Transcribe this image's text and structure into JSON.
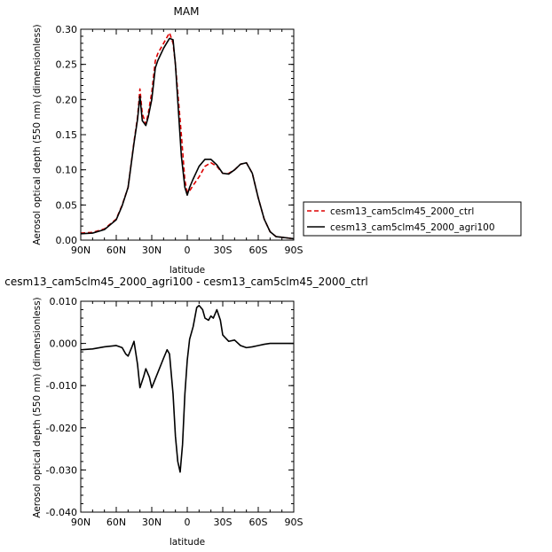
{
  "chart_data": [
    {
      "type": "line",
      "title": "MAM",
      "xlabel": "latitude",
      "ylabel": "Aerosol optical depth (550 nm) (dimensionless)",
      "x_ticks": [
        "90N",
        "60N",
        "30N",
        "0",
        "30S",
        "60S",
        "90S"
      ],
      "x_tick_values": [
        90,
        60,
        30,
        0,
        -30,
        -60,
        -90
      ],
      "xlim": [
        90,
        -90
      ],
      "ylim": [
        0,
        0.3
      ],
      "y_ticks": [
        "0.00",
        "0.05",
        "0.10",
        "0.15",
        "0.20",
        "0.25",
        "0.30"
      ],
      "y_tick_values": [
        0,
        0.05,
        0.1,
        0.15,
        0.2,
        0.25,
        0.3
      ],
      "legend": {
        "placement": "right"
      },
      "series": [
        {
          "name": "cesm13_cam5clm45_2000_ctrl",
          "color": "#dd0000",
          "dash": true,
          "x": [
            90,
            80,
            70,
            60,
            55,
            50,
            45,
            42,
            40,
            38,
            35,
            33,
            30,
            27,
            25,
            20,
            15,
            12,
            10,
            5,
            2,
            0,
            -2,
            -5,
            -10,
            -15,
            -20,
            -25,
            -30,
            -35,
            -40,
            -45,
            -50,
            -55,
            -60,
            -65,
            -70,
            -75,
            -80,
            -85,
            -90
          ],
          "y": [
            0.01,
            0.011,
            0.016,
            0.03,
            0.05,
            0.075,
            0.14,
            0.175,
            0.215,
            0.18,
            0.165,
            0.18,
            0.21,
            0.255,
            0.265,
            0.28,
            0.295,
            0.28,
            0.25,
            0.15,
            0.085,
            0.068,
            0.07,
            0.078,
            0.09,
            0.105,
            0.11,
            0.105,
            0.095,
            0.095,
            0.1,
            0.108,
            0.11,
            0.095,
            0.06,
            0.03,
            0.012,
            0.005,
            0.004,
            0.003,
            0.002
          ]
        },
        {
          "name": "cesm13_cam5clm45_2000_agri100",
          "color": "#000000",
          "dash": false,
          "x": [
            90,
            80,
            70,
            60,
            55,
            50,
            45,
            42,
            40,
            38,
            35,
            33,
            30,
            27,
            25,
            20,
            15,
            12,
            10,
            5,
            2,
            0,
            -2,
            -5,
            -10,
            -15,
            -20,
            -25,
            -30,
            -35,
            -40,
            -45,
            -50,
            -55,
            -60,
            -65,
            -70,
            -75,
            -80,
            -85,
            -90
          ],
          "y": [
            0.009,
            0.01,
            0.015,
            0.029,
            0.049,
            0.075,
            0.138,
            0.172,
            0.205,
            0.17,
            0.163,
            0.175,
            0.2,
            0.245,
            0.255,
            0.273,
            0.287,
            0.285,
            0.25,
            0.12,
            0.075,
            0.064,
            0.075,
            0.087,
            0.105,
            0.115,
            0.115,
            0.107,
            0.095,
            0.094,
            0.1,
            0.108,
            0.11,
            0.095,
            0.06,
            0.03,
            0.012,
            0.005,
            0.004,
            0.003,
            0.002
          ]
        }
      ]
    },
    {
      "type": "line",
      "title": "cesm13_cam5clm45_2000_agri100 - cesm13_cam5clm45_2000_ctrl",
      "xlabel": "latitude",
      "ylabel": "Aerosol optical depth (550 nm) (dimensionless)",
      "x_ticks": [
        "90N",
        "60N",
        "30N",
        "0",
        "30S",
        "60S",
        "90S"
      ],
      "x_tick_values": [
        90,
        60,
        30,
        0,
        -30,
        -60,
        -90
      ],
      "xlim": [
        90,
        -90
      ],
      "ylim": [
        -0.04,
        0.01
      ],
      "y_ticks": [
        "-0.040",
        "-0.030",
        "-0.020",
        "-0.010",
        "0.000",
        "0.010"
      ],
      "y_tick_values": [
        -0.04,
        -0.03,
        -0.02,
        -0.01,
        0.0,
        0.01
      ],
      "series": [
        {
          "color": "#000000",
          "x": [
            90,
            80,
            70,
            60,
            55,
            52,
            50,
            47,
            45,
            42,
            40,
            37,
            35,
            32,
            30,
            25,
            20,
            17,
            15,
            12,
            10,
            8,
            6,
            4,
            2,
            0,
            -2,
            -5,
            -8,
            -10,
            -13,
            -15,
            -18,
            -20,
            -22,
            -25,
            -28,
            -30,
            -35,
            -40,
            -45,
            -50,
            -55,
            -60,
            -65,
            -70,
            -75,
            -80,
            -85,
            -90
          ],
          "y": [
            -0.0015,
            -0.0013,
            -0.0008,
            -0.0005,
            -0.001,
            -0.0025,
            -0.003,
            -0.001,
            0.0005,
            -0.005,
            -0.0105,
            -0.008,
            -0.006,
            -0.008,
            -0.0105,
            -0.007,
            -0.0035,
            -0.0015,
            -0.0025,
            -0.012,
            -0.022,
            -0.028,
            -0.0305,
            -0.024,
            -0.012,
            -0.004,
            0.001,
            0.004,
            0.0085,
            0.009,
            0.008,
            0.006,
            0.0055,
            0.0065,
            0.006,
            0.008,
            0.0055,
            0.002,
            0.0005,
            0.0008,
            -0.0005,
            -0.001,
            -0.0008,
            -0.0005,
            -0.0002,
            0.0,
            0.0,
            0.0,
            0.0,
            0.0
          ]
        }
      ]
    }
  ]
}
